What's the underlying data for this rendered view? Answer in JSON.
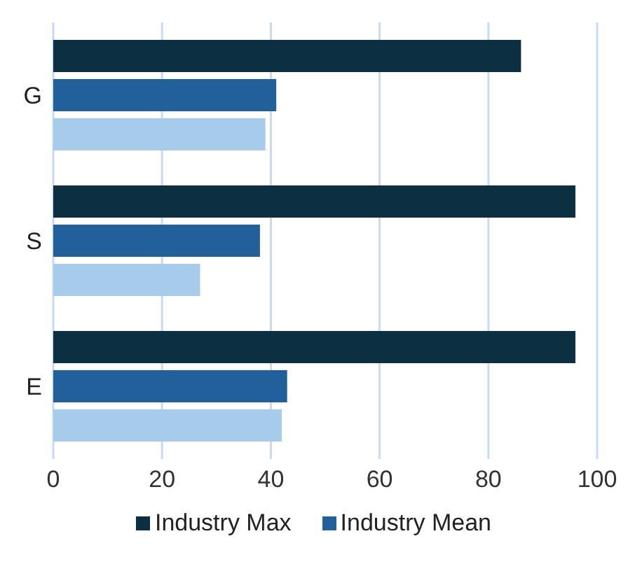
{
  "chart_data": {
    "type": "bar",
    "orientation": "horizontal",
    "categories": [
      "G",
      "S",
      "E"
    ],
    "series": [
      {
        "name": "Industry Max",
        "color": "#0d2f42",
        "values": [
          86,
          96,
          96
        ]
      },
      {
        "name": "Industry Mean",
        "color": "#22609c",
        "values": [
          41,
          38,
          43
        ]
      },
      {
        "color": "#a6cbeb",
        "values": [
          39,
          27,
          42
        ]
      }
    ],
    "xlim": [
      0,
      100
    ],
    "xticks": [
      0,
      20,
      40,
      60,
      80,
      100
    ],
    "grid": "x",
    "legend": "bottom"
  }
}
